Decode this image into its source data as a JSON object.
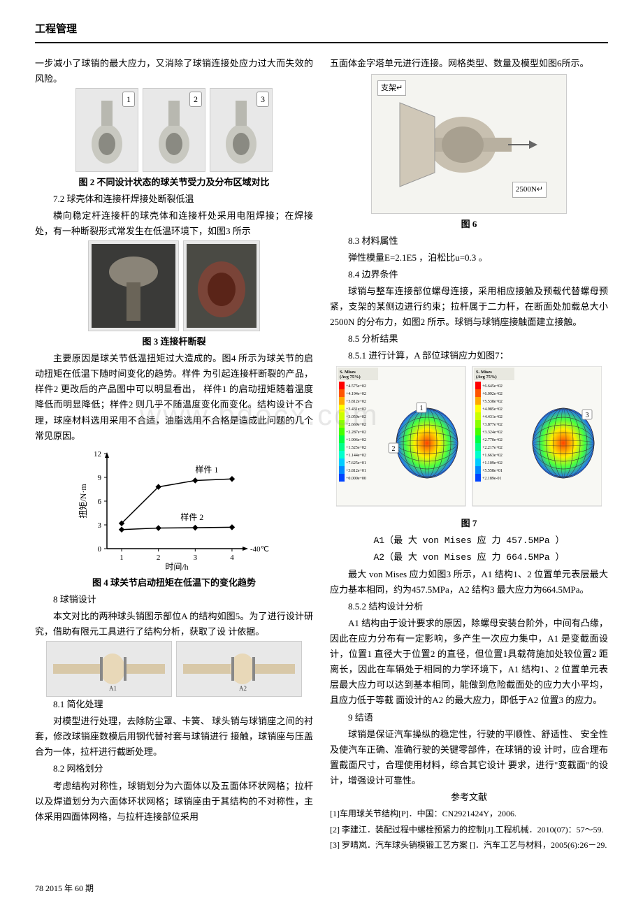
{
  "header": {
    "title": "工程管理"
  },
  "left": {
    "p1": "一步减小了球销的最大应力，又消除了球销连接处应力过大而失效的风险。",
    "fig2": {
      "badges": [
        "1",
        "2",
        "3"
      ],
      "caption": "图 2 不同设计状态的球关节受力及分布区域对比"
    },
    "sec72_title": "7.2 球壳体和连接杆焊接处断裂低温",
    "sec72_p1": "横向稳定杆连接杆的球壳体和连接杆处采用电阻焊接；在焊接处，有一种断裂形式常发生在低温环境下，如图3 所示",
    "fig3": {
      "caption": "图 3 连接杆断裂"
    },
    "sec72_p2": "主要原因是球关节低温扭矩过大造成的。图4 所示为球关节的启动扭矩在低温下随时间变化的趋势。样件 为引起连接杆断裂的产品，样件2 更改后的产品图中可以明显看出，  样件1 的启动扭矩随着温度降低而明显降低；样件2 则几乎不随温度变化而变化。结构设计不合理，球座材料选用采用不合适，油脂选用不合格是造成此问题的几个常见原因。",
    "fig4": {
      "caption": "图 4 球关节启动扭矩在低温下的变化趋势",
      "chart": {
        "type": "line",
        "xlabel": "时间/h",
        "ylabel": "扭矩/N·m",
        "x_ticks": [
          1,
          2,
          3,
          4
        ],
        "y_ticks": [
          0,
          3,
          6,
          9,
          12
        ],
        "ylim": [
          0,
          12
        ],
        "xlim": [
          0.6,
          4.4
        ],
        "annotation_right": "-40℃",
        "series": [
          {
            "label": "样件 1",
            "color": "#000000",
            "marker": "diamond",
            "points": [
              [
                1,
                3.2
              ],
              [
                2,
                7.8
              ],
              [
                3,
                8.6
              ],
              [
                4,
                8.8
              ]
            ]
          },
          {
            "label": "样件 2",
            "color": "#000000",
            "marker": "diamond",
            "points": [
              [
                1,
                2.4
              ],
              [
                2,
                2.6
              ],
              [
                3,
                2.65
              ],
              [
                4,
                2.7
              ]
            ]
          }
        ],
        "background": "#ffffff",
        "axis_color": "#000000",
        "label_fontsize": 12
      }
    },
    "sec8_title": "8 球销设计",
    "sec8_p1": "本文对比的两种球头销图示部位A 的结构如图5。为了进行设计研究，借助有限元工具进行了结构分析，获取了设 计依据。",
    "sec81_title": "8.1 简化处理",
    "sec81_p1": "对模型进行处理，去除防尘罩、卡簧、  球头销与球销座之间的衬套，修改球销座数模后用钢代替衬套与球销进行 接触，球销座与压盖合为一体，拉杆进行截断处理。",
    "sec82_title": "8.2 网格划分",
    "sec82_p1": "考虑结构对称性，球销划分为六面体以及五面体环状网格；拉杆以及焊道划分为六面体环状网格；球销座由于其结构的不对称性，主体采用四面体网格，与拉杆连接部位采用"
  },
  "right": {
    "p1": "五面体金字塔单元进行连接。网格类型、数量及模型如图6所示。",
    "fig6": {
      "caption": "图 6",
      "label_top": "支架↵",
      "label_bottom": "2500N↵"
    },
    "sec83_title": "8.3 材料属性",
    "sec83_p1": "弹性模量E=2.1E5 ，泊松比u=0.3 。",
    "sec84_title": "8.4 边界条件",
    "sec84_p1": "球销与整车连接部位螺母连接，采用相应接触及预载代替螺母预紧，支架的某侧边进行约束；拉杆属于二力杆，在断面处加载总大小2500N 的分布力，如图2 所示。球销与球销座接触面建立接触。",
    "sec85_title": "8.5 分析结果",
    "sec851_title": "8.5.1 进行计算，A 部位球销应力如图7：",
    "fig7": {
      "caption": "图 7",
      "badges": [
        "1",
        "2",
        "3"
      ],
      "legend_title": "S. Mises\n(Avg 75%)",
      "legend_values_a": [
        "+4.575e+02",
        "+4.194e+02",
        "+3.812e+02",
        "+3.431e+02",
        "+3.050e+02",
        "+2.669e+02",
        "+2.287e+02",
        "+1.906e+02",
        "+1.525e+02",
        "+1.144e+02",
        "+7.625e+01",
        "+3.812e+01",
        "+0.000e+00"
      ],
      "legend_values_b": [
        "+6.645e+02",
        "+6.092e+02",
        "+5.538e+02",
        "+4.985e+02",
        "+4.431e+02",
        "+3.877e+02",
        "+3.324e+02",
        "+2.770e+02",
        "+2.217e+02",
        "+1.663e+02",
        "+1.109e+02",
        "+5.558e+01",
        "+2.189e-01"
      ],
      "legend_colors": [
        "#ff0000",
        "#ff5500",
        "#ffaa00",
        "#ffff00",
        "#ccff00",
        "#88ff00",
        "#44ff00",
        "#00ff44",
        "#00ff88",
        "#00ffcc",
        "#00ccff",
        "#0088ff",
        "#0044ff"
      ]
    },
    "result_a1": "A1（最 大 von Mises      应 力 457.5MPa      ）",
    "result_a2": "A2（最 大 von Mises      应 力 664.5MPa      ）",
    "sec85_p1": "最大 von Mises 应力如图3 所示，A1 结构1、2 位置单元表层最大应力基本相同，约为457.5MPa，A2 结构3 最大应力为664.5MPa。",
    "sec852_title": "8.5.2 结构设计分析",
    "sec852_p1": "A1 结构由于设计要求的原因，除螺母安装台阶外，中间有凸缘，因此在应力分布有一定影响，多产生一次应力集中，A1 是变截面设计，位置1 直径大于位置2 的直径，但位置1具载荷施加处较位置2 距离长，因此在车辆处于相同的力学环境下，A1 结构1、2 位置单元表层最大应力可以达到基本相同，能做到危险截面处的应力大小平均，且应力低于等截 面设计的A2 的最大应力，即低于A2 位置3 的应力。",
    "sec9_title": "9 结语",
    "sec9_p1": "球销是保证汽车操纵的稳定性，行驶的平顺性、舒适性、 安全性及使汽车正确、准确行驶的关键零部件，在球销的设 计时，应合理布置截面尺寸，合理使用材料，综合其它设计 要求，进行\"变截面\"的设计，增强设计可靠性。",
    "ref_title": "参考文献",
    "refs": [
      "[1]车用球关节结构[P]．中国：CN2921424Y，2006.",
      "[2] 李建江．装配过程中螺栓预紧力的控制[J].工程机械．2010(07)：57～59.",
      "[3] 罗晴岚．汽车球头销模锻工艺方案 []．汽车工艺与材料，2005(6):26－29."
    ]
  },
  "watermark": "www.bdocx.com",
  "footer": "78 2015 年 60 期"
}
